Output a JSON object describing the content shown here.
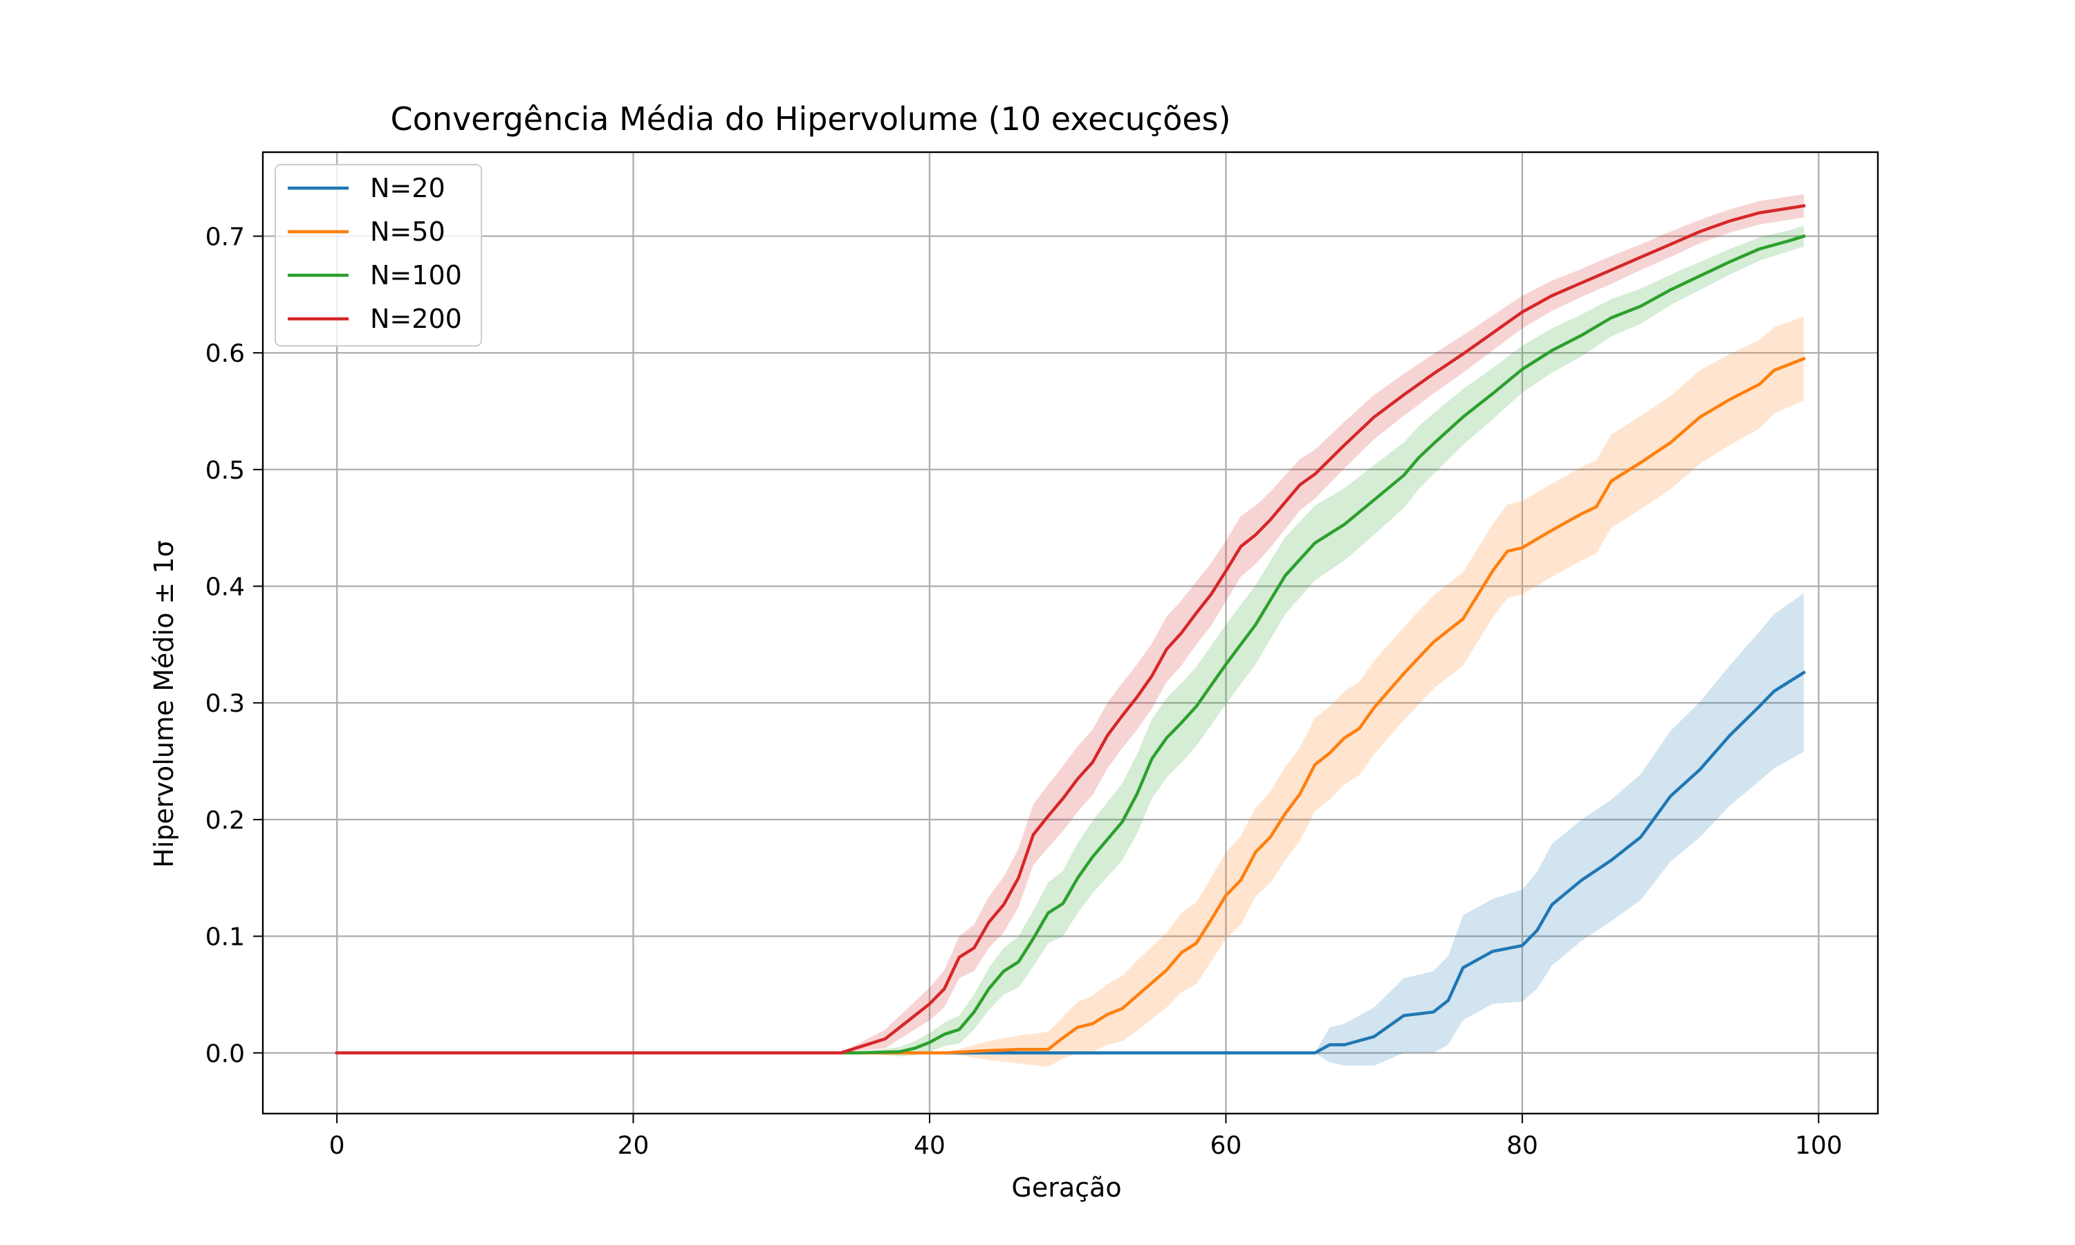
{
  "chart_data": {
    "type": "line",
    "title": "Convergência Média do Hipervolume (10 execuções)",
    "xlabel": "Geração",
    "ylabel": "Hipervolume Médio ± 1σ",
    "xlim": [
      -5,
      104
    ],
    "ylim": [
      -0.052,
      0.772
    ],
    "xticks": [
      0,
      20,
      40,
      60,
      80,
      100
    ],
    "xtick_labels": [
      "0",
      "20",
      "40",
      "60",
      "80",
      "100"
    ],
    "yticks": [
      0.0,
      0.1,
      0.2,
      0.3,
      0.4,
      0.5,
      0.6,
      0.7
    ],
    "ytick_labels": [
      "0.0",
      "0.1",
      "0.2",
      "0.3",
      "0.4",
      "0.5",
      "0.6",
      "0.7"
    ],
    "grid": true,
    "legend_position": "upper left",
    "series": [
      {
        "name": "N=20",
        "color": "#1f77b4",
        "x": [
          0,
          66,
          67,
          68,
          70,
          72,
          74,
          75,
          76,
          78,
          80,
          81,
          82,
          84,
          86,
          88,
          90,
          92,
          94,
          96,
          97,
          99
        ],
        "mean": [
          0,
          0,
          0.007,
          0.007,
          0.014,
          0.032,
          0.035,
          0.045,
          0.073,
          0.087,
          0.092,
          0.105,
          0.127,
          0.148,
          0.165,
          0.185,
          0.22,
          0.243,
          0.272,
          0.297,
          0.31,
          0.326
        ],
        "std": [
          0,
          0,
          0.015,
          0.018,
          0.025,
          0.032,
          0.035,
          0.038,
          0.045,
          0.045,
          0.048,
          0.05,
          0.052,
          0.052,
          0.052,
          0.054,
          0.056,
          0.058,
          0.06,
          0.064,
          0.066,
          0.068
        ]
      },
      {
        "name": "N=50",
        "color": "#ff7f0e",
        "x": [
          0,
          41,
          44,
          46,
          48,
          49,
          50,
          51,
          52,
          53,
          54,
          56,
          57,
          58,
          59,
          60,
          61,
          62,
          63,
          64,
          65,
          66,
          67,
          68,
          69,
          70,
          72,
          74,
          76,
          78,
          79,
          80,
          82,
          84,
          85,
          86,
          88,
          90,
          92,
          94,
          96,
          97,
          99
        ],
        "mean": [
          0,
          0,
          0.002,
          0.003,
          0.003,
          0.013,
          0.022,
          0.025,
          0.033,
          0.038,
          0.049,
          0.071,
          0.086,
          0.094,
          0.114,
          0.135,
          0.148,
          0.172,
          0.185,
          0.205,
          0.222,
          0.247,
          0.257,
          0.27,
          0.278,
          0.296,
          0.325,
          0.352,
          0.372,
          0.413,
          0.43,
          0.433,
          0.448,
          0.462,
          0.468,
          0.49,
          0.506,
          0.523,
          0.545,
          0.56,
          0.573,
          0.585,
          0.595
        ],
        "std": [
          0,
          0,
          0.008,
          0.012,
          0.015,
          0.018,
          0.022,
          0.024,
          0.026,
          0.028,
          0.03,
          0.032,
          0.034,
          0.035,
          0.036,
          0.037,
          0.038,
          0.038,
          0.039,
          0.04,
          0.04,
          0.04,
          0.04,
          0.04,
          0.04,
          0.04,
          0.04,
          0.04,
          0.04,
          0.04,
          0.04,
          0.04,
          0.04,
          0.04,
          0.04,
          0.04,
          0.04,
          0.04,
          0.04,
          0.039,
          0.038,
          0.037,
          0.036
        ]
      },
      {
        "name": "N=100",
        "color": "#2ca02c",
        "x": [
          0,
          35,
          38,
          39,
          40,
          41,
          42,
          43,
          44,
          45,
          46,
          47,
          48,
          49,
          50,
          51,
          52,
          53,
          54,
          55,
          56,
          57,
          58,
          60,
          62,
          64,
          66,
          68,
          70,
          72,
          73,
          74,
          76,
          78,
          80,
          82,
          84,
          86,
          88,
          90,
          92,
          94,
          96,
          98,
          99
        ],
        "mean": [
          0,
          0,
          0.001,
          0.004,
          0.009,
          0.016,
          0.02,
          0.035,
          0.055,
          0.07,
          0.078,
          0.098,
          0.12,
          0.128,
          0.15,
          0.168,
          0.183,
          0.198,
          0.222,
          0.252,
          0.27,
          0.283,
          0.297,
          0.333,
          0.367,
          0.409,
          0.437,
          0.453,
          0.474,
          0.495,
          0.51,
          0.522,
          0.545,
          0.565,
          0.586,
          0.602,
          0.615,
          0.63,
          0.64,
          0.654,
          0.666,
          0.678,
          0.689,
          0.696,
          0.7
        ],
        "std": [
          0,
          0,
          0.004,
          0.006,
          0.008,
          0.01,
          0.012,
          0.015,
          0.018,
          0.02,
          0.022,
          0.024,
          0.026,
          0.028,
          0.03,
          0.031,
          0.032,
          0.033,
          0.034,
          0.034,
          0.034,
          0.034,
          0.034,
          0.034,
          0.034,
          0.033,
          0.032,
          0.031,
          0.03,
          0.028,
          0.027,
          0.026,
          0.024,
          0.022,
          0.02,
          0.019,
          0.018,
          0.016,
          0.015,
          0.013,
          0.012,
          0.011,
          0.01,
          0.009,
          0.009
        ]
      },
      {
        "name": "N=200",
        "color": "#d62728",
        "x": [
          0,
          34,
          37,
          38,
          39,
          40,
          41,
          42,
          43,
          44,
          45,
          46,
          47,
          48,
          49,
          50,
          51,
          52,
          53,
          54,
          55,
          56,
          57,
          58,
          59,
          60,
          61,
          62,
          63,
          64,
          65,
          66,
          68,
          70,
          72,
          74,
          76,
          78,
          80,
          82,
          84,
          86,
          88,
          90,
          92,
          94,
          96,
          98,
          99
        ],
        "mean": [
          0,
          0,
          0.012,
          0.022,
          0.032,
          0.042,
          0.055,
          0.082,
          0.09,
          0.112,
          0.127,
          0.15,
          0.187,
          0.203,
          0.218,
          0.235,
          0.249,
          0.272,
          0.289,
          0.305,
          0.323,
          0.346,
          0.36,
          0.377,
          0.393,
          0.413,
          0.434,
          0.444,
          0.457,
          0.472,
          0.487,
          0.496,
          0.521,
          0.545,
          0.564,
          0.582,
          0.599,
          0.617,
          0.635,
          0.649,
          0.66,
          0.671,
          0.682,
          0.693,
          0.704,
          0.713,
          0.72,
          0.724,
          0.726
        ],
        "std": [
          0,
          0,
          0.008,
          0.01,
          0.012,
          0.014,
          0.016,
          0.018,
          0.02,
          0.022,
          0.024,
          0.025,
          0.026,
          0.027,
          0.028,
          0.028,
          0.028,
          0.028,
          0.028,
          0.028,
          0.028,
          0.028,
          0.028,
          0.027,
          0.027,
          0.026,
          0.026,
          0.025,
          0.024,
          0.023,
          0.022,
          0.021,
          0.02,
          0.019,
          0.018,
          0.017,
          0.016,
          0.015,
          0.014,
          0.013,
          0.012,
          0.012,
          0.011,
          0.011,
          0.01,
          0.01,
          0.01,
          0.01,
          0.01
        ]
      }
    ]
  }
}
